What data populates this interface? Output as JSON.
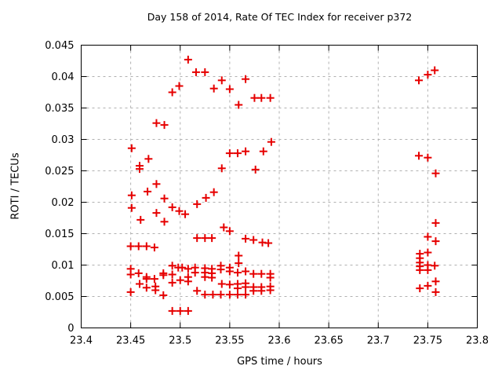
{
  "chart_data": {
    "type": "scatter",
    "title": "Day 158 of 2014, Rate Of TEC Index for receiver p372",
    "xlabel": "GPS time / hours",
    "ylabel": "ROTI / TECUs",
    "xlim": [
      23.4,
      23.8
    ],
    "ylim": [
      0,
      0.045
    ],
    "xticks": [
      23.4,
      23.45,
      23.5,
      23.55,
      23.6,
      23.65,
      23.7,
      23.75,
      23.8
    ],
    "xtick_labels": [
      "23.4",
      "23.45",
      "23.5",
      "23.55",
      "23.6",
      "23.65",
      "23.7",
      "23.75",
      "23.8"
    ],
    "yticks": [
      0,
      0.005,
      0.01,
      0.015,
      0.02,
      0.025,
      0.03,
      0.035,
      0.04,
      0.045
    ],
    "ytick_labels": [
      "0",
      "0.005",
      "0.01",
      "0.015",
      "0.02",
      "0.025",
      "0.03",
      "0.035",
      "0.04",
      "0.045"
    ],
    "grid": true,
    "legend": "none",
    "marker": "plus",
    "marker_color": "#e60000",
    "grid_color": "#b0b0b0",
    "axis_color": "#000000",
    "series": [
      {
        "name": "ROTI",
        "points": [
          [
            23.508,
            0.0427
          ],
          [
            23.516,
            0.0407
          ],
          [
            23.525,
            0.0407
          ],
          [
            23.499,
            0.0385
          ],
          [
            23.492,
            0.0375
          ],
          [
            23.534,
            0.0381
          ],
          [
            23.542,
            0.0394
          ],
          [
            23.55,
            0.038
          ],
          [
            23.559,
            0.0355
          ],
          [
            23.566,
            0.0396
          ],
          [
            23.575,
            0.0366
          ],
          [
            23.582,
            0.0366
          ],
          [
            23.591,
            0.0366
          ],
          [
            23.476,
            0.0326
          ],
          [
            23.484,
            0.0323
          ],
          [
            23.451,
            0.0286
          ],
          [
            23.468,
            0.0269
          ],
          [
            23.459,
            0.0258
          ],
          [
            23.459,
            0.0253
          ],
          [
            23.476,
            0.0229
          ],
          [
            23.467,
            0.0217
          ],
          [
            23.451,
            0.0211
          ],
          [
            23.484,
            0.0206
          ],
          [
            23.492,
            0.0192
          ],
          [
            23.451,
            0.0191
          ],
          [
            23.499,
            0.0186
          ],
          [
            23.476,
            0.0183
          ],
          [
            23.505,
            0.0181
          ],
          [
            23.46,
            0.0172
          ],
          [
            23.484,
            0.0169
          ],
          [
            23.517,
            0.0197
          ],
          [
            23.526,
            0.0207
          ],
          [
            23.534,
            0.0216
          ],
          [
            23.542,
            0.0254
          ],
          [
            23.576,
            0.0252
          ],
          [
            23.55,
            0.0278
          ],
          [
            23.558,
            0.0278
          ],
          [
            23.566,
            0.0281
          ],
          [
            23.584,
            0.0281
          ],
          [
            23.592,
            0.0296
          ],
          [
            23.544,
            0.016
          ],
          [
            23.55,
            0.0154
          ],
          [
            23.517,
            0.0143
          ],
          [
            23.525,
            0.0143
          ],
          [
            23.532,
            0.0143
          ],
          [
            23.566,
            0.0142
          ],
          [
            23.574,
            0.014
          ],
          [
            23.583,
            0.0136
          ],
          [
            23.589,
            0.0135
          ],
          [
            23.559,
            0.0115
          ],
          [
            23.559,
            0.0103
          ],
          [
            23.45,
            0.013
          ],
          [
            23.458,
            0.013
          ],
          [
            23.466,
            0.013
          ],
          [
            23.474,
            0.0128
          ],
          [
            23.45,
            0.0094
          ],
          [
            23.45,
            0.0085
          ],
          [
            23.458,
            0.0087
          ],
          [
            23.466,
            0.0081
          ],
          [
            23.466,
            0.0078
          ],
          [
            23.474,
            0.0078
          ],
          [
            23.483,
            0.0087
          ],
          [
            23.483,
            0.0084
          ],
          [
            23.492,
            0.0099
          ],
          [
            23.492,
            0.0085
          ],
          [
            23.498,
            0.0096
          ],
          [
            23.502,
            0.0096
          ],
          [
            23.5,
            0.0076
          ],
          [
            23.508,
            0.0094
          ],
          [
            23.508,
            0.0081
          ],
          [
            23.508,
            0.0074
          ],
          [
            23.515,
            0.0096
          ],
          [
            23.515,
            0.0088
          ],
          [
            23.492,
            0.0072
          ],
          [
            23.459,
            0.007
          ],
          [
            23.466,
            0.0064
          ],
          [
            23.475,
            0.0066
          ],
          [
            23.475,
            0.006
          ],
          [
            23.483,
            0.0052
          ],
          [
            23.45,
            0.0057
          ],
          [
            23.525,
            0.0095
          ],
          [
            23.525,
            0.0088
          ],
          [
            23.525,
            0.0081
          ],
          [
            23.532,
            0.0094
          ],
          [
            23.532,
            0.0087
          ],
          [
            23.532,
            0.008
          ],
          [
            23.541,
            0.0099
          ],
          [
            23.541,
            0.0093
          ],
          [
            23.55,
            0.0096
          ],
          [
            23.55,
            0.009
          ],
          [
            23.558,
            0.0088
          ],
          [
            23.566,
            0.009
          ],
          [
            23.574,
            0.0086
          ],
          [
            23.582,
            0.0086
          ],
          [
            23.591,
            0.0086
          ],
          [
            23.591,
            0.008
          ],
          [
            23.542,
            0.007
          ],
          [
            23.55,
            0.0069
          ],
          [
            23.558,
            0.007
          ],
          [
            23.558,
            0.0063
          ],
          [
            23.566,
            0.0071
          ],
          [
            23.566,
            0.0065
          ],
          [
            23.574,
            0.0065
          ],
          [
            23.574,
            0.0059
          ],
          [
            23.582,
            0.0065
          ],
          [
            23.582,
            0.0059
          ],
          [
            23.591,
            0.0066
          ],
          [
            23.591,
            0.006
          ],
          [
            23.517,
            0.0059
          ],
          [
            23.525,
            0.0053
          ],
          [
            23.533,
            0.0053
          ],
          [
            23.541,
            0.0053
          ],
          [
            23.55,
            0.0053
          ],
          [
            23.558,
            0.0053
          ],
          [
            23.566,
            0.0053
          ],
          [
            23.492,
            0.0027
          ],
          [
            23.5,
            0.0027
          ],
          [
            23.508,
            0.0027
          ],
          [
            23.741,
            0.0394
          ],
          [
            23.75,
            0.0403
          ],
          [
            23.757,
            0.041
          ],
          [
            23.741,
            0.0274
          ],
          [
            23.75,
            0.0271
          ],
          [
            23.758,
            0.0246
          ],
          [
            23.758,
            0.0167
          ],
          [
            23.75,
            0.0145
          ],
          [
            23.758,
            0.0138
          ],
          [
            23.742,
            0.0118
          ],
          [
            23.742,
            0.0111
          ],
          [
            23.742,
            0.0104
          ],
          [
            23.742,
            0.0098
          ],
          [
            23.742,
            0.0092
          ],
          [
            23.75,
            0.012
          ],
          [
            23.75,
            0.01
          ],
          [
            23.75,
            0.0092
          ],
          [
            23.757,
            0.0099
          ],
          [
            23.758,
            0.0074
          ],
          [
            23.75,
            0.0067
          ],
          [
            23.742,
            0.0063
          ],
          [
            23.758,
            0.0057
          ]
        ]
      }
    ]
  }
}
